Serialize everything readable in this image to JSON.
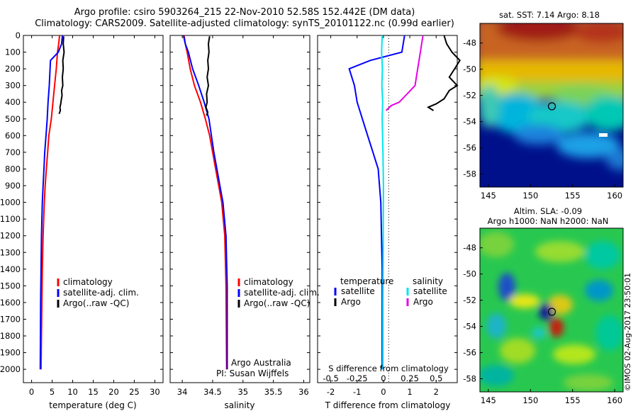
{
  "header": {
    "line1": "Argo profile: csiro 5903264_215 22-Nov-2010 52.58S 152.442E (DM data)",
    "line2": "Climatology: CARS2009. Satellite-adjusted climatology: synTS_20101122.nc (0.99d earlier)"
  },
  "chart_data": [
    {
      "type": "line",
      "name": "temperature-profile",
      "xlabel": "temperature (deg C)",
      "ylabel": "",
      "xlim": [
        -2,
        32
      ],
      "ylim": [
        2080,
        0
      ],
      "xticks": [
        0,
        5,
        10,
        15,
        20,
        25,
        30
      ],
      "yticks": [
        0,
        100,
        200,
        300,
        400,
        500,
        600,
        700,
        800,
        900,
        1000,
        1100,
        1200,
        1300,
        1400,
        1500,
        1600,
        1700,
        1800,
        1900,
        2000
      ],
      "legend": [
        "climatology",
        "satellite-adj. clim.",
        "Argo(..raw -QC)"
      ],
      "colors": [
        "#ff0000",
        "#0000ff",
        "#000000"
      ],
      "series": [
        {
          "name": "climatology",
          "color": "#ff0000",
          "x": [
            6.8,
            6.6,
            6.3,
            6.0,
            5.6,
            5.2,
            4.8,
            4.2,
            3.9,
            3.6,
            3.3,
            3.1,
            2.8,
            2.6,
            2.5,
            2.4,
            2.3
          ],
          "y": [
            0,
            50,
            100,
            200,
            300,
            400,
            500,
            600,
            700,
            800,
            900,
            1000,
            1200,
            1400,
            1600,
            1800,
            2000
          ]
        },
        {
          "name": "satellite-adj. clim.",
          "color": "#0000ff",
          "x": [
            7.5,
            7.3,
            6.5,
            4.6,
            4.3,
            4.0,
            3.8,
            3.5,
            3.2,
            3.0,
            2.8,
            2.6,
            2.4,
            2.3,
            2.2,
            2.1
          ],
          "y": [
            0,
            50,
            100,
            150,
            300,
            400,
            500,
            600,
            700,
            800,
            900,
            1000,
            1200,
            1400,
            1600,
            2000
          ]
        },
        {
          "name": "Argo(..raw -QC)",
          "color": "#000000",
          "x": [
            7.8,
            7.7,
            7.9,
            7.6,
            7.7,
            7.5,
            7.6,
            7.3,
            7.4,
            7.2,
            7.1,
            6.9,
            7.0,
            6.7
          ],
          "y": [
            5,
            50,
            100,
            150,
            200,
            250,
            300,
            330,
            360,
            390,
            410,
            430,
            450,
            470
          ]
        }
      ]
    },
    {
      "type": "line",
      "name": "salinity-profile",
      "xlabel": "salinity",
      "xlim": [
        33.8,
        36.1
      ],
      "ylim": [
        2080,
        0
      ],
      "xticks": [
        34,
        34.5,
        35,
        35.5,
        36
      ],
      "legend": [
        "climatology",
        "satellite-adj. clim.",
        "Argo(..raw -QC)"
      ],
      "annotations": [
        "Argo Australia",
        "PI: Susan Wijffels"
      ],
      "series": [
        {
          "name": "climatology",
          "color": "#ff0000",
          "x": [
            34.03,
            34.05,
            34.08,
            34.13,
            34.2,
            34.3,
            34.38,
            34.45,
            34.5,
            34.55,
            34.6,
            34.65,
            34.7,
            34.72,
            34.73
          ],
          "y": [
            0,
            50,
            100,
            200,
            300,
            400,
            500,
            600,
            700,
            800,
            900,
            1000,
            1200,
            1500,
            2000
          ]
        },
        {
          "name": "satellite-adj. clim.",
          "color": "#0000ff",
          "x": [
            34.02,
            34.05,
            34.1,
            34.17,
            34.27,
            34.36,
            34.44,
            34.48,
            34.52,
            34.57,
            34.62,
            34.67,
            34.72,
            34.74,
            34.74
          ],
          "y": [
            0,
            50,
            100,
            200,
            300,
            400,
            500,
            600,
            700,
            800,
            900,
            1000,
            1200,
            1500,
            2000
          ]
        },
        {
          "name": "Argo(..raw -QC)",
          "color": "#000000",
          "x": [
            34.45,
            34.43,
            34.44,
            34.42,
            34.43,
            34.41,
            34.43,
            34.4,
            34.41,
            34.39,
            34.42,
            34.4
          ],
          "y": [
            5,
            50,
            100,
            150,
            200,
            250,
            300,
            350,
            400,
            430,
            460,
            480
          ]
        }
      ]
    },
    {
      "type": "line",
      "name": "difference-profile",
      "xlabel": "T difference from climatology",
      "xlabel_top": "S difference from climatology",
      "xlim": [
        -2.5,
        2.8
      ],
      "ylim": [
        2080,
        0
      ],
      "xticks": [
        -2,
        -1,
        0,
        1,
        2
      ],
      "xticks_top": [
        -0.5,
        -0.25,
        0,
        0.25,
        0.5
      ],
      "legend_left_title": "temperature",
      "legend_right_title": "salinity",
      "legend": [
        "satellite",
        "Argo",
        "satellite",
        "Argo"
      ],
      "series": [
        {
          "name": "temperature satellite",
          "color": "#0000ff",
          "x": [
            0.8,
            0.7,
            -0.5,
            -1.3,
            -1.1,
            -1.0,
            -0.8,
            -0.6,
            -0.4,
            -0.2,
            -0.1,
            -0.05,
            -0.05
          ],
          "y": [
            0,
            100,
            150,
            200,
            300,
            400,
            500,
            600,
            700,
            800,
            1000,
            1400,
            2000
          ]
        },
        {
          "name": "temperature Argo",
          "color": "#000000",
          "x": [
            2.3,
            2.4,
            2.6,
            2.9,
            2.7,
            2.5,
            2.8,
            2.5,
            2.3,
            2.0,
            1.7,
            1.9
          ],
          "y": [
            0,
            50,
            100,
            150,
            200,
            250,
            300,
            330,
            380,
            410,
            430,
            450
          ]
        },
        {
          "name": "salinity satellite",
          "color": "#00e5ee",
          "x": [
            -0.05,
            -0.07,
            -0.04,
            -0.06,
            -0.03,
            -0.05,
            -0.02,
            0.0,
            -0.01,
            -0.02,
            -0.02
          ],
          "y": [
            0,
            100,
            200,
            300,
            400,
            500,
            700,
            900,
            1200,
            1600,
            2000
          ]
        },
        {
          "name": "salinity Argo",
          "color": "#e600e6",
          "x": [
            1.5,
            1.45,
            1.4,
            1.3,
            1.2,
            0.9,
            0.6,
            0.3,
            0.1
          ],
          "y": [
            0,
            50,
            100,
            200,
            300,
            350,
            400,
            420,
            450
          ]
        }
      ]
    },
    {
      "type": "heatmap",
      "name": "sst-map",
      "title": "sat. SST: 7.14 Argo: 8.18",
      "xlim": [
        144,
        161
      ],
      "ylim": [
        -59,
        -46.5
      ],
      "xticks": [
        145,
        150,
        155,
        160
      ],
      "yticks": [
        -48,
        -50,
        -52,
        -54,
        -56,
        -58
      ],
      "marker": {
        "lon": 152.44,
        "lat": -52.58
      }
    },
    {
      "type": "heatmap",
      "name": "sla-map",
      "title": "Altim. SLA: -0.09",
      "subtitle": "Argo h1000: NaN h2000: NaN",
      "xlim": [
        144,
        161
      ],
      "ylim": [
        -59,
        -46.5
      ],
      "xticks": [
        145,
        150,
        155,
        160
      ],
      "yticks": [
        -48,
        -50,
        -52,
        -54,
        -56,
        -58
      ],
      "marker": {
        "lon": 152.44,
        "lat": -52.58
      }
    }
  ],
  "credit": "©IMOS 02-Aug-2017 23:50:01"
}
